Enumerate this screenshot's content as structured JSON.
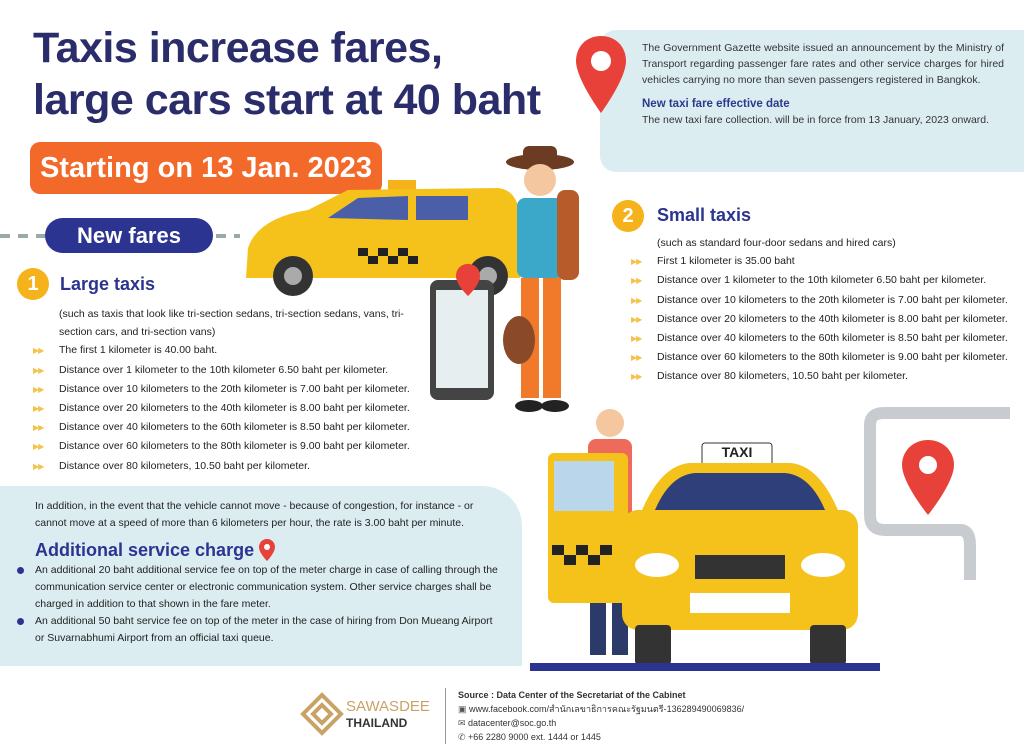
{
  "title_line1": "Taxis increase fares,",
  "title_line2": "large cars start at 40 baht",
  "start_badge": "Starting on 13 Jan. 2023",
  "info": {
    "announcement": "The Government Gazette website issued an announcement by the Ministry of Transport regarding passenger fare rates and other service charges for hired vehicles carrying no more than seven passengers registered in Bangkok.",
    "effective_heading": "New taxi fare effective date",
    "effective_text": "The new taxi fare collection. will be in force from 13 January, 2023 onward."
  },
  "new_fares_label": "New fares",
  "large": {
    "number": "1",
    "title": "Large taxis",
    "note": "(such as taxis that look like tri-section sedans, tri-section sedans, vans, tri-section cars, and tri-section vans)",
    "items": [
      "The first 1 kilometer is 40.00 baht.",
      "Distance over 1 kilometer to the 10th kilometer 6.50 baht per kilometer.",
      "Distance over 10 kilometers to the 20th kilometer is 7.00 baht per kilometer.",
      "Distance over 20 kilometers to the 40th kilometer is 8.00 baht per kilometer.",
      "Distance over 40 kilometers to the 60th kilometer is 8.50 baht per kilometer.",
      "Distance over 60 kilometers to the 80th kilometer is 9.00 baht per kilometer.",
      "Distance over 80 kilometers, 10.50 baht per kilometer."
    ]
  },
  "small": {
    "number": "2",
    "title": "Small taxis",
    "note": "(such as standard four-door sedans and hired cars)",
    "items": [
      "First 1 kilometer is 35.00 baht",
      "Distance over 1 kilometer to the 10th kilometer 6.50 baht per kilometer.",
      "Distance over 10 kilometers to the 20th kilometer is 7.00 baht per kilometer.",
      "Distance over 20 kilometers to the 40th kilometer is 8.00 baht per kilometer.",
      "Distance over 40 kilometers to the 60th kilometer is 8.50 baht per kilometer.",
      "Distance over 60 kilometers to the 80th kilometer is 9.00 baht per kilometer.",
      "Distance over 80 kilometers, 10.50 baht per kilometer."
    ]
  },
  "congestion_text": "In addition, in the event that the vehicle cannot move - because of congestion, for instance - or cannot move at a speed of more than 6 kilometers per hour, the rate is 3.00 baht per minute.",
  "additional": {
    "title": "Additional service charge",
    "items": [
      "An additional 20 baht additional service fee on top of the meter charge in case of calling through the communication service center or electronic communication system. Other service charges shall be charged in addition to that shown in the fare meter.",
      "An additional 50 baht service fee on top of the meter in the case of hiring from Don Mueang Airport or Suvarnabhumi Airport from an official taxi queue."
    ]
  },
  "taxi_sign": "TAXI",
  "footer": {
    "logo_line1": "SAWASDEE",
    "logo_line2": "THAILAND",
    "source": "Source : Data Center of the Secretariat of the Cabinet",
    "facebook": "www.facebook.com/สำนักเลขาธิการคณะรัฐมนตรี-136289490069836/",
    "email": "datacenter@soc.go.th",
    "phone": "+66 2280 9000 ext. 1444 or 1445"
  },
  "colors": {
    "navy": "#2c3491",
    "orange": "#f2692a",
    "yellow": "#f5b21b",
    "panel": "#dcedf2",
    "pin": "#e8413a"
  }
}
